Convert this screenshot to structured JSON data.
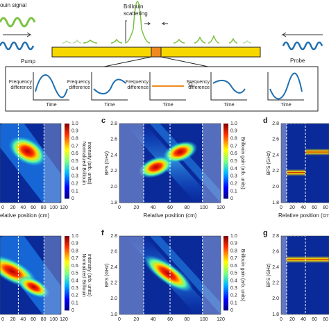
{
  "schematic": {
    "signal_label": "ouin signal",
    "scattering_label": [
      "Brillouin",
      "scattering"
    ],
    "pump_label": "Pump",
    "probe_label": "Probe",
    "plots": [
      {
        "ylabel": [
          "Frequency",
          "difference"
        ],
        "xlabel": "Time"
      },
      {
        "ylabel": [
          "Frequency",
          "difference"
        ],
        "xlabel": "Time"
      },
      {
        "ylabel": [
          "Frequency",
          "difference"
        ],
        "xlabel": "Time",
        "marker": "Ω"
      },
      {
        "ylabel": [
          "Frequency",
          "difference"
        ],
        "xlabel": "Time"
      },
      {
        "xlabel": "Time"
      }
    ]
  },
  "panels": [
    {
      "xticks": [
        "0",
        "20",
        "40",
        "60",
        "80",
        "100",
        "120"
      ],
      "xlabel": "elative position (cm)",
      "cbticks": [
        "1.0",
        "0.9",
        "0.8",
        "0.7",
        "0.6",
        "0.5",
        "0.4",
        "0.3",
        "0.2",
        "0.1",
        "0"
      ],
      "cblabel": [
        "Normalized Brillouin",
        "intensity (arb. units)"
      ]
    },
    {
      "letter": "c",
      "yticks": [
        "2.8",
        "2.6",
        "2.4",
        "2.2",
        "2.0",
        "1.8"
      ],
      "ylabel": "BFS (GHz)",
      "xticks": [
        "0",
        "20",
        "40",
        "60",
        "80",
        "100",
        "120"
      ],
      "xlabel": "Relative position (cm)",
      "cbticks": [
        "1.0",
        "0.9",
        "0.8",
        "0.7",
        "0.6",
        "0.5",
        "0.4",
        "0.3",
        "0.2",
        "0.1",
        "0"
      ],
      "cblabel": [
        "Brillouin gain (arb. units)"
      ]
    },
    {
      "letter": "d",
      "yticks": [
        "2.8",
        "2.6",
        "2.4",
        "2.2",
        "2.0",
        "1.8"
      ],
      "ylabel": "BFS (GHz)",
      "xticks": [
        "0",
        "20",
        "40",
        "60",
        "80"
      ],
      "xlabel": "Relative position (cm)"
    },
    {
      "xticks": [
        "0",
        "20",
        "40",
        "60",
        "80",
        "100",
        "120"
      ],
      "cbticks": [
        "1.0",
        "0.9",
        "0.8",
        "0.7",
        "0.6",
        "0.5",
        "0.4",
        "0.3",
        "0.2",
        "0.1",
        "0"
      ],
      "cblabel": [
        "Normalized Brillouin",
        "intensity (arb. units)"
      ]
    },
    {
      "letter": "f",
      "yticks": [
        "2.8",
        "2.6",
        "2.4",
        "2.2",
        "2.0",
        "1.8"
      ],
      "ylabel": "BFS (GHz)",
      "xticks": [
        "0",
        "20",
        "40",
        "60",
        "80",
        "100",
        "120"
      ],
      "cbticks": [
        "1.0",
        "0.9",
        "0.8",
        "0.7",
        "0.6",
        "0.5",
        "0.4",
        "0.3",
        "0.2",
        "0.1",
        "0"
      ],
      "cblabel": [
        "Brillouin gain (arb. units)"
      ]
    },
    {
      "letter": "g",
      "yticks": [
        "2.8",
        "2.6",
        "2.4",
        "2.2",
        "2.0",
        "1.8"
      ],
      "ylabel": "BFS (GHz)",
      "xticks": [
        "0",
        "20",
        "40",
        "60",
        "80"
      ]
    }
  ]
}
